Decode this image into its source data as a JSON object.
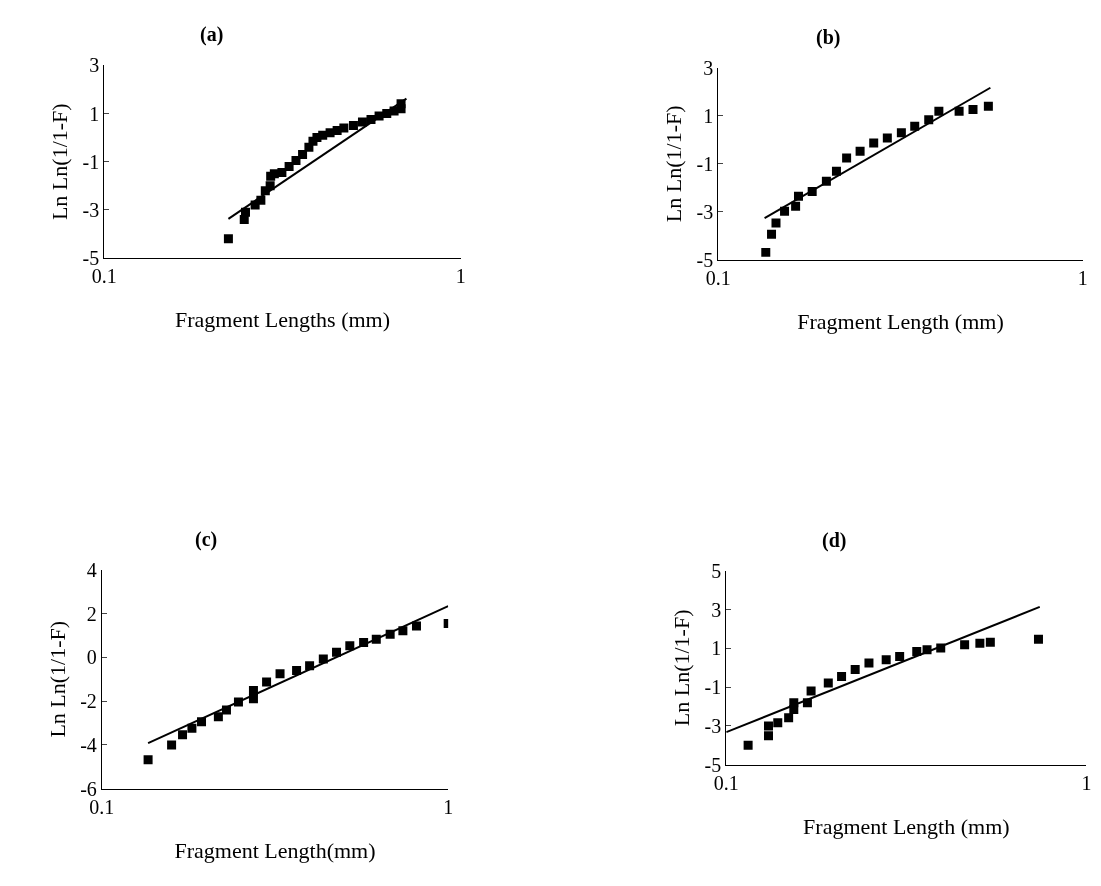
{
  "chart_data": [
    {
      "type": "scatter",
      "title": "(a)",
      "xlabel": "Fragment Lengths (mm)",
      "ylabel": "Ln Ln(1/1-F)",
      "log": "x",
      "xlim": [
        0.1,
        1
      ],
      "xticks": [
        0.1,
        1
      ],
      "ylim": [
        -5,
        3
      ],
      "yticks": [
        -5,
        -3,
        -1,
        1,
        3
      ],
      "series": [
        {
          "marker": "square",
          "color": "#000000",
          "x": [
            0.223,
            0.247,
            0.249,
            0.265,
            0.275,
            0.283,
            0.292,
            0.293,
            0.3,
            0.315,
            0.33,
            0.345,
            0.36,
            0.375,
            0.385,
            0.395,
            0.41,
            0.43,
            0.45,
            0.47,
            0.5,
            0.53,
            0.56,
            0.59,
            0.62,
            0.65,
            0.68,
            0.68
          ],
          "values": [
            -4.2,
            -3.4,
            -3.1,
            -2.8,
            -2.6,
            -2.2,
            -2.0,
            -1.6,
            -1.5,
            -1.45,
            -1.2,
            -0.95,
            -0.7,
            -0.4,
            -0.15,
            0.0,
            0.1,
            0.2,
            0.3,
            0.4,
            0.5,
            0.65,
            0.75,
            0.9,
            1.0,
            1.1,
            1.2,
            1.4
          ]
        },
        {
          "type": "line",
          "color": "#000000",
          "x": [
            0.223,
            0.704
          ],
          "values": [
            -3.37,
            1.62
          ]
        }
      ]
    },
    {
      "type": "scatter",
      "title": "(b)",
      "xlabel": "Fragment Length (mm)",
      "ylabel": "Ln Ln(1/1-F)",
      "log": "x",
      "xlim": [
        0.1,
        1
      ],
      "xticks": [
        0.1,
        1
      ],
      "ylim": [
        -5,
        3
      ],
      "yticks": [
        -5,
        -3,
        -1,
        1,
        3
      ],
      "series": [
        {
          "marker": "square",
          "color": "#000000",
          "x": [
            0.135,
            0.14,
            0.144,
            0.152,
            0.163,
            0.166,
            0.181,
            0.198,
            0.211,
            0.225,
            0.245,
            0.267,
            0.291,
            0.318,
            0.346,
            0.378,
            0.403,
            0.458,
            0.5,
            0.551
          ],
          "values": [
            -4.69,
            -3.93,
            -3.47,
            -2.98,
            -2.77,
            -2.35,
            -2.15,
            -1.73,
            -1.31,
            -0.76,
            -0.48,
            -0.13,
            0.08,
            0.29,
            0.57,
            0.84,
            1.19,
            1.19,
            1.26,
            1.4
          ]
        },
        {
          "type": "line",
          "color": "#000000",
          "x": [
            0.134,
            0.558
          ],
          "values": [
            -3.26,
            2.17
          ]
        }
      ]
    },
    {
      "type": "scatter",
      "title": "(c)",
      "xlabel": "Fragment Length(mm)",
      "ylabel": "Ln Ln(1/1-F)",
      "log": "x",
      "xlim": [
        0.1,
        1
      ],
      "xticks": [
        0.1,
        1
      ],
      "ylim": [
        -6,
        4
      ],
      "yticks": [
        -6,
        -4,
        -2,
        0,
        2,
        4
      ],
      "series": [
        {
          "marker": "square",
          "color": "#000000",
          "x": [
            0.136,
            0.159,
            0.171,
            0.182,
            0.194,
            0.217,
            0.229,
            0.248,
            0.274,
            0.274,
            0.299,
            0.327,
            0.365,
            0.398,
            0.436,
            0.476,
            0.52,
            0.57,
            0.62,
            0.68,
            0.74,
            0.81,
            1.0
          ],
          "values": [
            -4.68,
            -4.0,
            -3.54,
            -3.24,
            -2.94,
            -2.71,
            -2.41,
            -2.04,
            -1.89,
            -1.51,
            -1.13,
            -0.75,
            -0.6,
            -0.38,
            -0.08,
            0.23,
            0.53,
            0.68,
            0.83,
            1.06,
            1.21,
            1.43,
            1.55
          ]
        },
        {
          "type": "line",
          "color": "#000000",
          "x": [
            0.136,
            1.0
          ],
          "values": [
            -3.92,
            2.34
          ]
        }
      ]
    },
    {
      "type": "scatter",
      "title": "(d)",
      "xlabel": "Fragment Length (mm)",
      "ylabel": "Ln Ln(1/1-F)",
      "log": "x",
      "xlim": [
        0.1,
        1
      ],
      "xticks": [
        0.1,
        1
      ],
      "ylim": [
        -5,
        5
      ],
      "yticks": [
        -5,
        -3,
        -1,
        1,
        3,
        5
      ],
      "series": [
        {
          "marker": "square",
          "color": "#000000",
          "x": [
            0.115,
            0.131,
            0.131,
            0.139,
            0.149,
            0.154,
            0.154,
            0.168,
            0.172,
            0.192,
            0.209,
            0.228,
            0.249,
            0.278,
            0.303,
            0.338,
            0.361,
            0.394,
            0.459,
            0.506,
            0.541,
            0.736
          ],
          "values": [
            -3.99,
            -3.51,
            -3.0,
            -2.83,
            -2.57,
            -2.15,
            -1.8,
            -1.8,
            -1.2,
            -0.78,
            -0.44,
            -0.09,
            0.25,
            0.42,
            0.59,
            0.85,
            0.93,
            1.02,
            1.19,
            1.27,
            1.32,
            1.48
          ]
        },
        {
          "type": "line",
          "color": "#000000",
          "x": [
            0.1,
            0.742
          ],
          "values": [
            -3.32,
            3.15
          ]
        }
      ]
    }
  ]
}
